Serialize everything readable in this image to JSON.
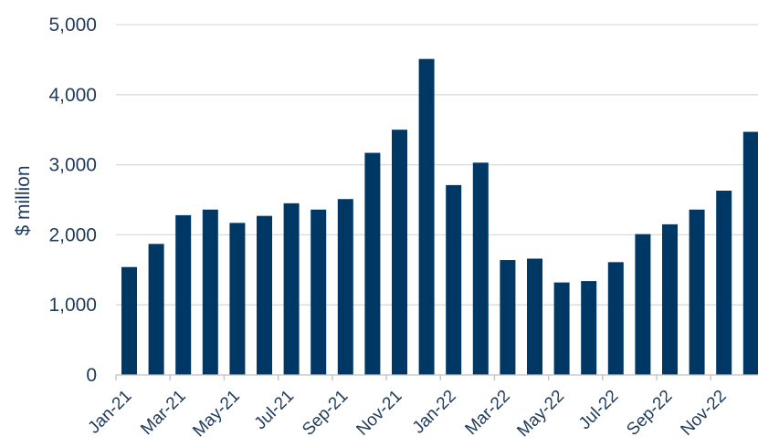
{
  "chart_data": {
    "type": "bar",
    "categories": [
      "Jan-21",
      "Feb-21",
      "Mar-21",
      "Apr-21",
      "May-21",
      "Jun-21",
      "Jul-21",
      "Aug-21",
      "Sep-21",
      "Oct-21",
      "Nov-21",
      "Dec-21",
      "Jan-22",
      "Feb-22",
      "Mar-22",
      "Apr-22",
      "May-22",
      "Jun-22",
      "Jul-22",
      "Aug-22",
      "Sep-22",
      "Oct-22",
      "Nov-22",
      "Dec-22"
    ],
    "values": [
      1540,
      1870,
      2280,
      2360,
      2170,
      2270,
      2450,
      2360,
      2510,
      3170,
      3500,
      4510,
      2710,
      3030,
      1640,
      1660,
      1320,
      1340,
      1610,
      2010,
      2150,
      2360,
      2630,
      3470
    ],
    "x_tick_labels": [
      "Jan-21",
      "Mar-21",
      "May-21",
      "Jul-21",
      "Sep-21",
      "Nov-21",
      "Jan-22",
      "Mar-22",
      "May-22",
      "Jul-22",
      "Sep-22",
      "Nov-22"
    ],
    "y_ticks": [
      0,
      1000,
      2000,
      3000,
      4000,
      5000
    ],
    "y_tick_labels": [
      "0",
      "1,000",
      "2,000",
      "3,000",
      "4,000",
      "5,000"
    ],
    "ylabel": "$ million",
    "ylim": [
      0,
      5000
    ],
    "grid": true,
    "colors": {
      "bar": "#003865",
      "grid": "#d9d9d9",
      "axis": "#bfbfbf",
      "text": "#1f3b5c"
    }
  }
}
